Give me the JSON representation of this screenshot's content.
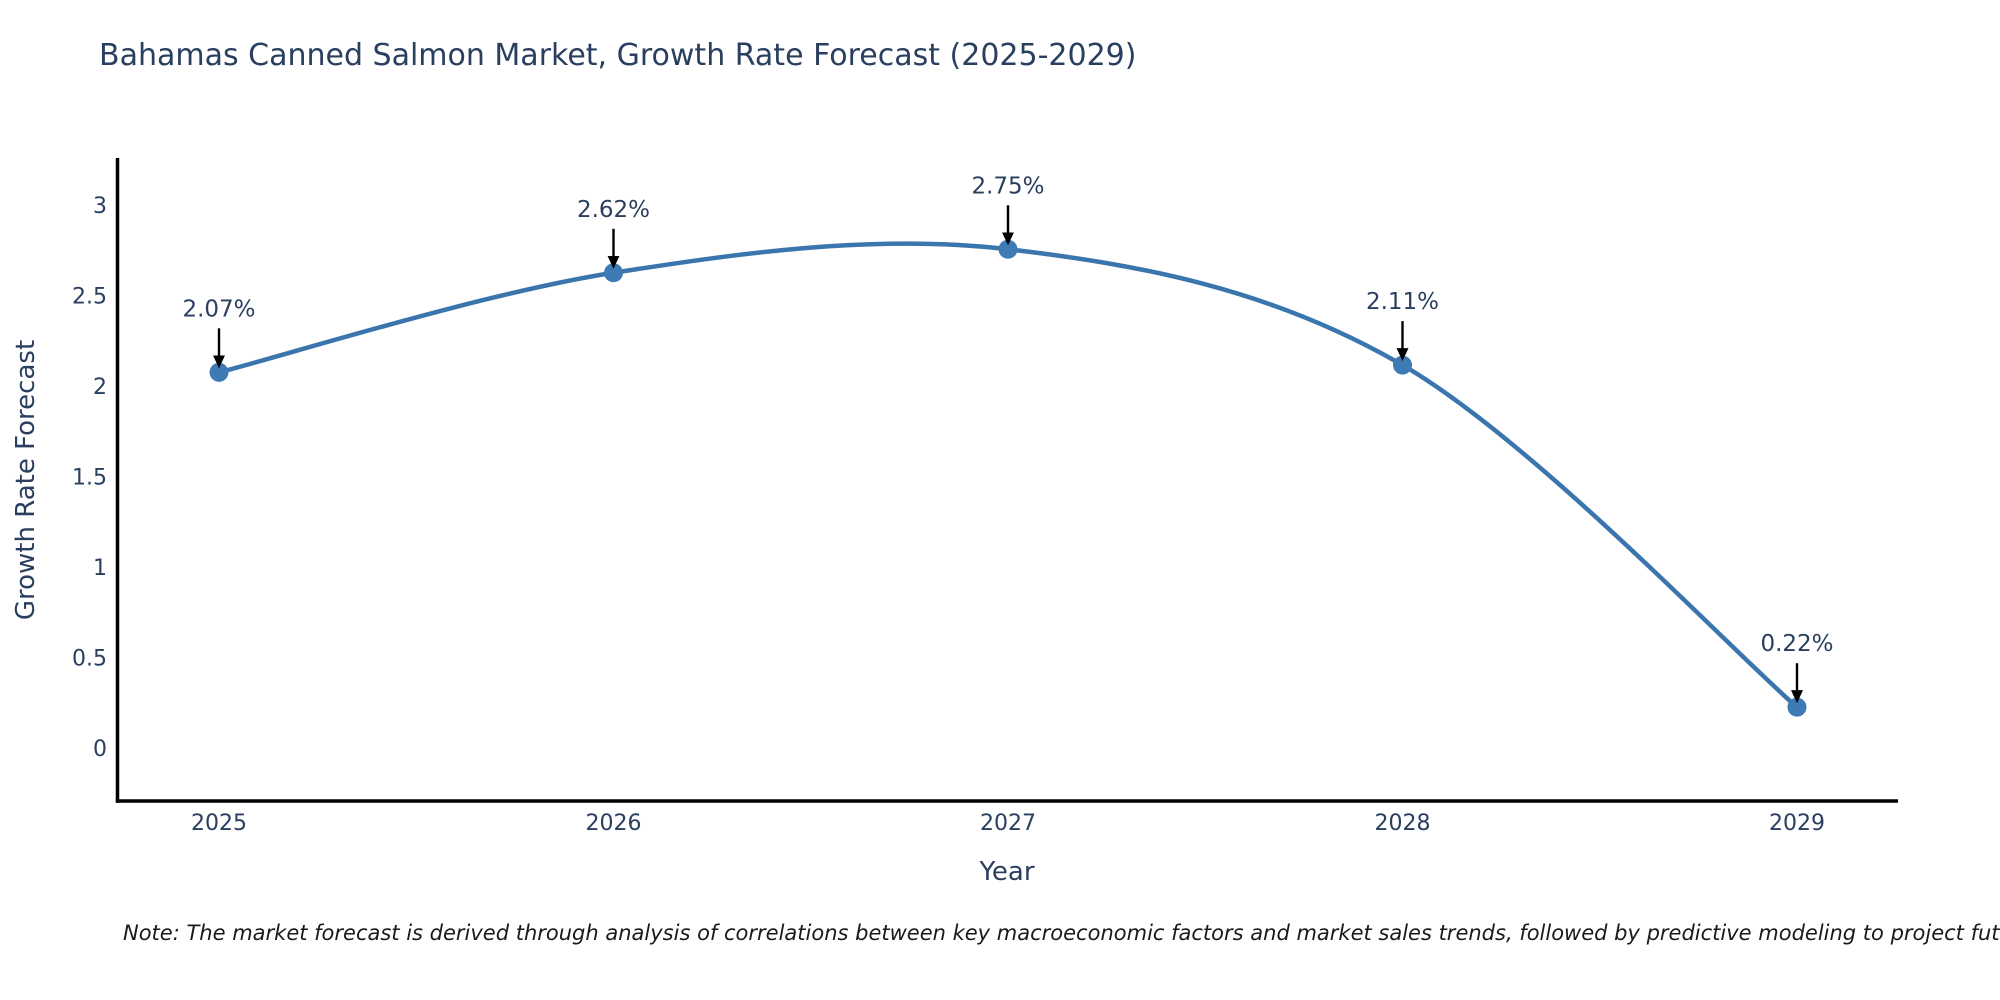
{
  "note": "Note: The market forecast is derived through analysis of correlations between key macroeconomic factors and market sales trends, followed by predictive modeling to project future sales.",
  "chart_data": {
    "type": "line",
    "line_shape": "spline",
    "title": "Bahamas Canned Salmon Market, Growth Rate Forecast (2025-2029)",
    "xlabel": "Year",
    "ylabel": "Growth Rate Forecast",
    "categories": [
      "2025",
      "2026",
      "2027",
      "2028",
      "2029"
    ],
    "values": [
      2.07,
      2.62,
      2.75,
      2.11,
      0.22
    ],
    "point_labels": [
      "2.07%",
      "2.62%",
      "2.75%",
      "2.11%",
      "0.22%"
    ],
    "yticks": [
      3,
      2.5,
      2,
      1.5,
      1,
      0.5,
      0
    ],
    "ylim": [
      -0.3,
      3.3
    ],
    "grid": false,
    "legend": false,
    "markers": true,
    "annotations_arrows": true,
    "colors": {
      "line": "#3a76ad",
      "marker": "#3e7ab3",
      "axis": "#000000",
      "text": "#2a3f5f",
      "note_text": "#1a1a1a",
      "arrow": "#000000",
      "background": "#ffffff"
    }
  }
}
